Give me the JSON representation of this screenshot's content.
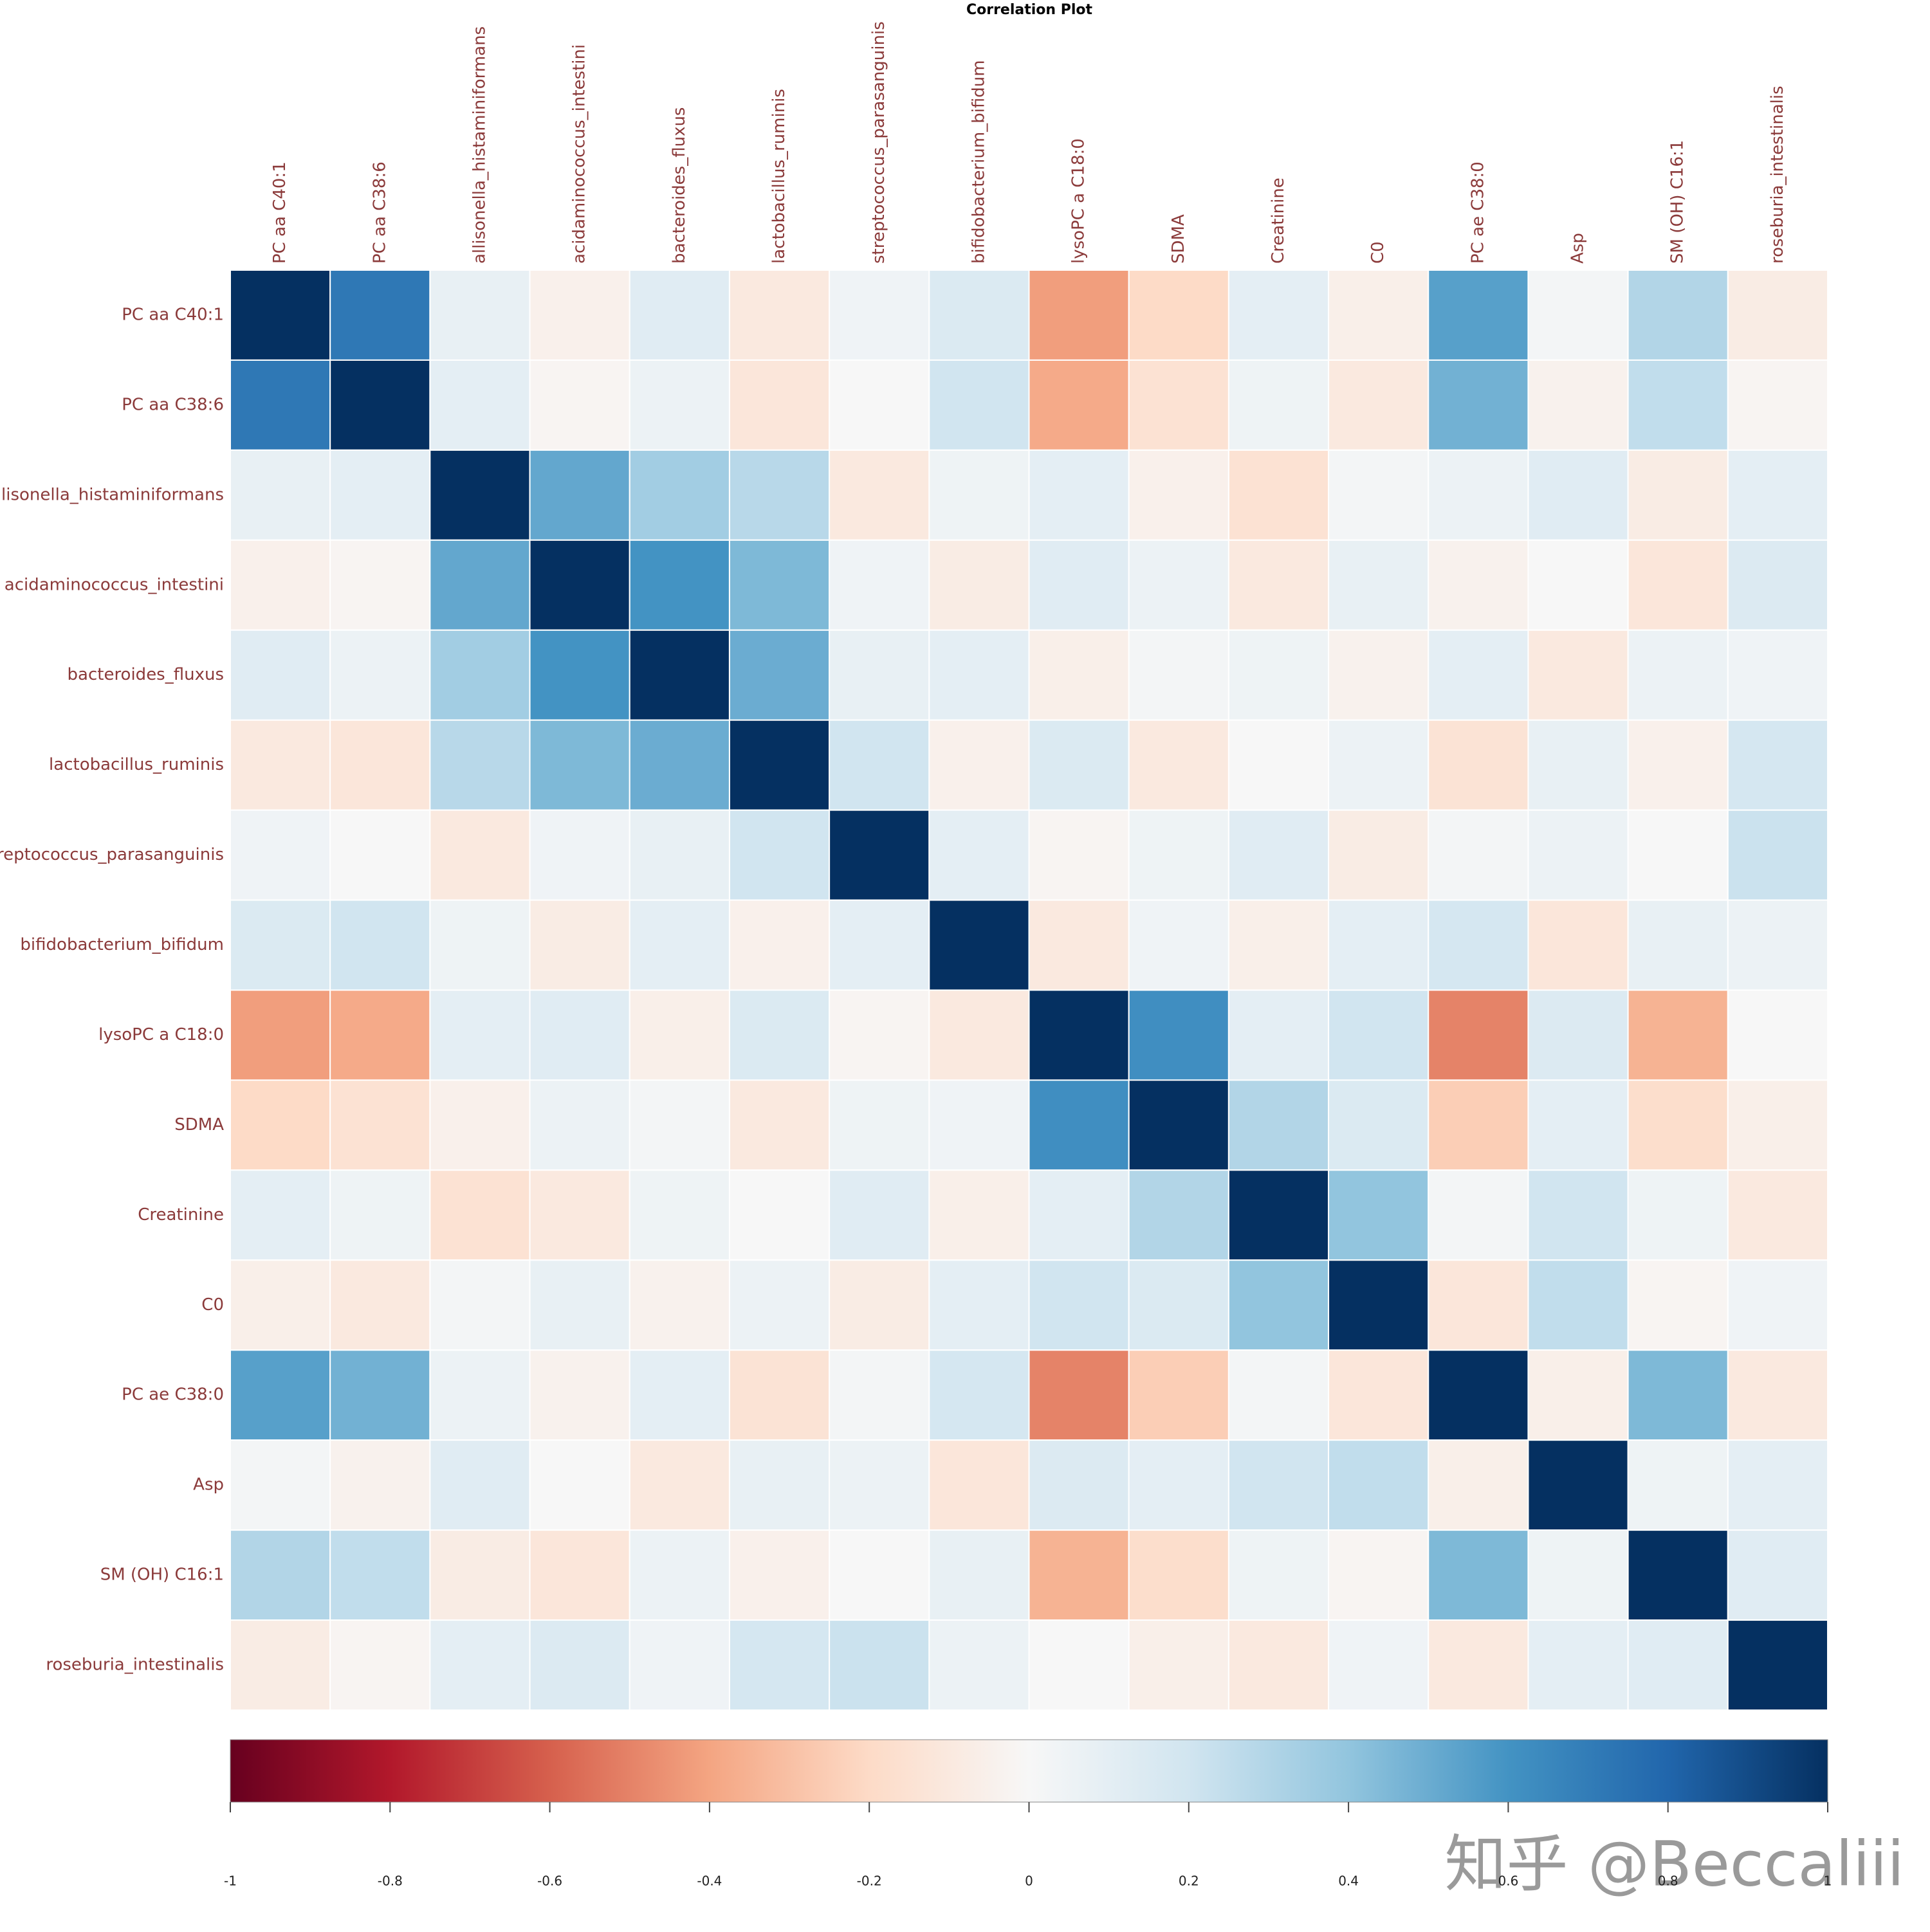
{
  "chart_data": {
    "type": "heatmap",
    "title": "Correlation Plot",
    "variables": [
      "PC aa C40:1",
      "PC aa C38:6",
      "allisonella_histaminiformans",
      "acidaminococcus_intestini",
      "bacteroides_fluxus",
      "lactobacillus_ruminis",
      "streptococcus_parasanguinis",
      "bifidobacterium_bifidum",
      "lysoPC a C18:0",
      "SDMA",
      "Creatinine",
      "C0",
      "PC ae C38:0",
      "Asp",
      "SM (OH) C16:1",
      "roseburia_intestinalis"
    ],
    "matrix": [
      [
        1,
        0.72,
        0.08,
        -0.05,
        0.12,
        -0.1,
        0.04,
        0.15,
        -0.42,
        -0.2,
        0.1,
        -0.06,
        0.55,
        0.02,
        0.3,
        -0.08
      ],
      [
        0.72,
        1,
        0.1,
        -0.02,
        0.06,
        -0.12,
        0.0,
        0.2,
        -0.38,
        -0.15,
        0.05,
        -0.1,
        0.48,
        -0.04,
        0.25,
        -0.02
      ],
      [
        0.08,
        0.1,
        1,
        0.52,
        0.35,
        0.28,
        -0.1,
        0.05,
        0.1,
        -0.05,
        -0.15,
        0.02,
        0.06,
        0.12,
        -0.08,
        0.1
      ],
      [
        -0.05,
        -0.02,
        0.52,
        1,
        0.6,
        0.45,
        0.04,
        -0.08,
        0.12,
        0.06,
        -0.1,
        0.08,
        -0.04,
        0.0,
        -0.12,
        0.14
      ],
      [
        0.12,
        0.06,
        0.35,
        0.6,
        1,
        0.5,
        0.08,
        0.1,
        -0.06,
        0.02,
        0.05,
        -0.04,
        0.1,
        -0.1,
        0.06,
        0.04
      ],
      [
        -0.1,
        -0.12,
        0.28,
        0.45,
        0.5,
        1,
        0.2,
        -0.05,
        0.15,
        -0.1,
        0.0,
        0.06,
        -0.14,
        0.08,
        -0.05,
        0.18
      ],
      [
        0.04,
        0.0,
        -0.1,
        0.04,
        0.08,
        0.2,
        1,
        0.1,
        -0.02,
        0.05,
        0.12,
        -0.08,
        0.02,
        0.06,
        0.0,
        0.22
      ],
      [
        0.15,
        0.2,
        0.05,
        -0.08,
        0.1,
        -0.05,
        0.1,
        1,
        -0.1,
        0.04,
        -0.06,
        0.1,
        0.18,
        -0.12,
        0.08,
        0.06
      ],
      [
        -0.42,
        -0.38,
        0.1,
        0.12,
        -0.06,
        0.15,
        -0.02,
        -0.1,
        1,
        0.62,
        0.1,
        0.2,
        -0.5,
        0.14,
        -0.35,
        0.0
      ],
      [
        -0.2,
        -0.15,
        -0.05,
        0.06,
        0.02,
        -0.1,
        0.05,
        0.04,
        0.62,
        1,
        0.3,
        0.15,
        -0.25,
        0.1,
        -0.18,
        -0.06
      ],
      [
        0.1,
        0.05,
        -0.15,
        -0.1,
        0.05,
        0.0,
        0.12,
        -0.06,
        0.1,
        0.3,
        1,
        0.4,
        0.02,
        0.2,
        0.05,
        -0.1
      ],
      [
        -0.06,
        -0.1,
        0.02,
        0.08,
        -0.04,
        0.06,
        -0.08,
        0.1,
        0.2,
        0.15,
        0.4,
        1,
        -0.12,
        0.25,
        -0.02,
        0.04
      ],
      [
        0.55,
        0.48,
        0.06,
        -0.04,
        0.1,
        -0.14,
        0.02,
        0.18,
        -0.5,
        -0.25,
        0.02,
        -0.12,
        1,
        -0.06,
        0.45,
        -0.1
      ],
      [
        0.02,
        -0.04,
        0.12,
        0.0,
        -0.1,
        0.08,
        0.06,
        -0.12,
        0.14,
        0.1,
        0.2,
        0.25,
        -0.06,
        1,
        0.05,
        0.1
      ],
      [
        0.3,
        0.25,
        -0.08,
        -0.12,
        0.06,
        -0.05,
        0.0,
        0.08,
        -0.35,
        -0.18,
        0.05,
        -0.02,
        0.45,
        0.05,
        1,
        0.12
      ],
      [
        -0.08,
        -0.02,
        0.1,
        0.14,
        0.04,
        0.18,
        0.22,
        0.06,
        0.0,
        -0.06,
        -0.1,
        0.04,
        -0.1,
        0.1,
        0.12,
        1
      ]
    ],
    "colormap": [
      "#67001f",
      "#b2182b",
      "#d6604d",
      "#f4a582",
      "#fddbc7",
      "#f7f7f7",
      "#d1e5f0",
      "#92c5de",
      "#4393c3",
      "#2166ac",
      "#053061"
    ],
    "clim": [
      -1,
      1
    ],
    "cticks": [
      -1,
      -0.8,
      -0.6,
      -0.4,
      -0.2,
      0,
      0.2,
      0.4,
      0.6,
      0.8,
      1
    ],
    "label_color": "#8b3a3a",
    "watermark": "知乎 @Beccaliii"
  }
}
